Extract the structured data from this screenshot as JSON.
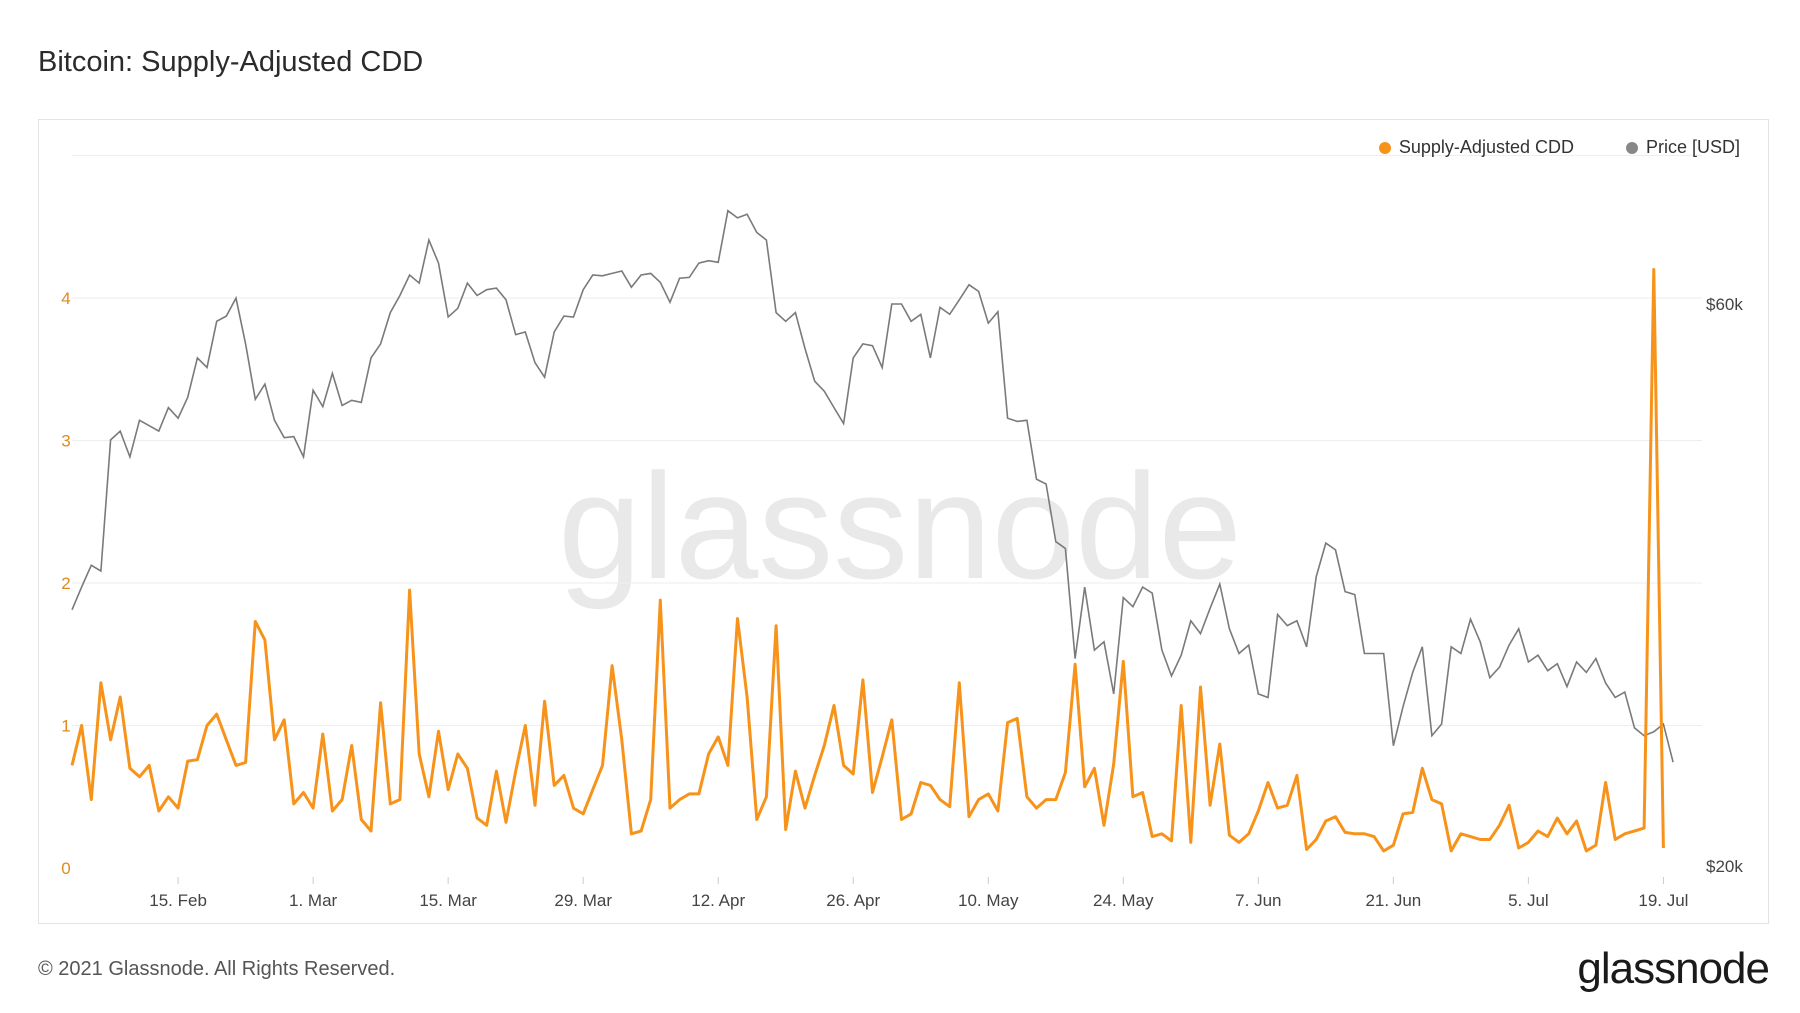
{
  "title": "Bitcoin: Supply-Adjusted CDD",
  "footer": "© 2021 Glassnode. All Rights Reserved.",
  "logo": "glassnode",
  "watermark": "glassnode",
  "colors": {
    "cdd": "#f7931a",
    "price": "#7a7a7a",
    "left_axis": "#e08a1e",
    "grid": "#eeeeee"
  },
  "legend": [
    {
      "label": "Supply-Adjusted CDD",
      "color": "#f7931a"
    },
    {
      "label": "Price [USD]",
      "color": "#888888"
    }
  ],
  "chart_data": {
    "type": "line",
    "title": "Bitcoin: Supply-Adjusted CDD",
    "x_ticks": [
      "15. Feb",
      "1. Mar",
      "15. Mar",
      "29. Mar",
      "12. Apr",
      "26. Apr",
      "10. May",
      "24. May",
      "7. Jun",
      "21. Jun",
      "5. Jul",
      "19. Jul"
    ],
    "x_tick_days": [
      15,
      29,
      43,
      57,
      71,
      85,
      99,
      113,
      127,
      141,
      155,
      169
    ],
    "x_range_days": [
      4,
      173
    ],
    "x_day_origin": "2021-01-31",
    "left_axis": {
      "ticks": [
        "0",
        "1",
        "2",
        "3",
        "4"
      ],
      "ylim": [
        0,
        5
      ]
    },
    "right_axis": {
      "ticks": [
        "$20k",
        "$60k"
      ],
      "tick_values": [
        20000,
        60000
      ],
      "scale": "log"
    },
    "grid": true,
    "legend_position": "top-right",
    "series": [
      {
        "name": "Supply-Adjusted CDD",
        "axis": "left",
        "x_start_day": 4,
        "values": [
          0.72,
          1.0,
          0.48,
          1.3,
          0.9,
          1.2,
          0.7,
          0.64,
          0.72,
          0.4,
          0.5,
          0.42,
          0.75,
          0.76,
          1.0,
          1.08,
          0.9,
          0.72,
          0.74,
          1.73,
          1.6,
          0.9,
          1.04,
          0.45,
          0.53,
          0.42,
          0.94,
          0.4,
          0.48,
          0.86,
          0.34,
          0.26,
          1.16,
          0.45,
          0.48,
          1.95,
          0.8,
          0.5,
          0.96,
          0.55,
          0.8,
          0.7,
          0.35,
          0.3,
          0.68,
          0.32,
          0.68,
          1.0,
          0.44,
          1.17,
          0.58,
          0.65,
          0.42,
          0.38,
          0.55,
          0.72,
          1.42,
          0.9,
          0.24,
          0.26,
          0.48,
          1.88,
          0.42,
          0.48,
          0.52,
          0.52,
          0.8,
          0.92,
          0.72,
          1.75,
          1.2,
          0.34,
          0.5,
          1.7,
          0.27,
          0.68,
          0.42,
          0.65,
          0.86,
          1.14,
          0.72,
          0.66,
          1.32,
          0.53,
          0.78,
          1.04,
          0.34,
          0.38,
          0.6,
          0.58,
          0.48,
          0.43,
          1.3,
          0.36,
          0.48,
          0.52,
          0.4,
          1.02,
          1.05,
          0.5,
          0.42,
          0.48,
          0.48,
          0.67,
          1.43,
          0.57,
          0.7,
          0.3,
          0.73,
          1.45,
          0.5,
          0.53,
          0.22,
          0.24,
          0.19,
          1.14,
          0.18,
          1.27,
          0.44,
          0.87,
          0.23,
          0.18,
          0.24,
          0.4,
          0.6,
          0.42,
          0.44,
          0.65,
          0.13,
          0.2,
          0.33,
          0.36,
          0.25,
          0.24,
          0.24,
          0.22,
          0.12,
          0.16,
          0.38,
          0.39,
          0.7,
          0.48,
          0.45,
          0.12,
          0.24,
          0.22,
          0.2,
          0.2,
          0.3,
          0.44,
          0.14,
          0.18,
          0.26,
          0.22,
          0.35,
          0.24,
          0.33,
          0.12,
          0.16,
          0.6,
          0.2,
          0.24,
          0.26,
          0.28,
          4.2,
          0.14
        ]
      },
      {
        "name": "Price [USD]",
        "axis": "right",
        "x_start_day": 4,
        "values": [
          33000,
          34500,
          36000,
          35600,
          46000,
          46800,
          44500,
          47800,
          47300,
          46800,
          49000,
          48000,
          50000,
          54000,
          53000,
          58000,
          58600,
          60700,
          55500,
          49800,
          51300,
          47800,
          46200,
          46300,
          44500,
          50700,
          49100,
          52400,
          49200,
          49700,
          49500,
          54000,
          55500,
          59000,
          61000,
          63500,
          62500,
          68000,
          65000,
          58500,
          59500,
          62500,
          61000,
          61700,
          61900,
          60500,
          56500,
          56800,
          53500,
          52000,
          56800,
          58600,
          58500,
          61700,
          63500,
          63400,
          63700,
          64000,
          62000,
          63500,
          63700,
          62600,
          60200,
          63100,
          63200,
          65000,
          65300,
          65100,
          72000,
          71000,
          71500,
          69000,
          68000,
          59000,
          58000,
          59000,
          55000,
          51600,
          50600,
          49000,
          47500,
          54000,
          55500,
          55300,
          53000,
          60000,
          60000,
          58000,
          58800,
          54000,
          59600,
          58800,
          60500,
          62300,
          61500,
          57800,
          59100,
          48000,
          47700,
          47800,
          42600,
          42200,
          37700,
          37200,
          30000,
          34500,
          30500,
          31000,
          28000,
          33800,
          33200,
          34500,
          34100,
          30500,
          29000,
          30200,
          32300,
          31500,
          33100,
          34700,
          31800,
          30300,
          30800,
          28000,
          27800,
          32700,
          32000,
          32300,
          30700,
          35200,
          37600,
          37100,
          34200,
          34000,
          30300,
          30300,
          30300,
          25300,
          27300,
          29200,
          30700,
          25800,
          26400,
          30700,
          30300,
          32400,
          31000,
          28900,
          29500,
          30800,
          31800,
          29800,
          30200,
          29300,
          29700,
          28400,
          29800,
          29200,
          30000,
          28600,
          27800,
          28100,
          26200,
          25800,
          26000,
          26400,
          24500
        ]
      }
    ]
  }
}
